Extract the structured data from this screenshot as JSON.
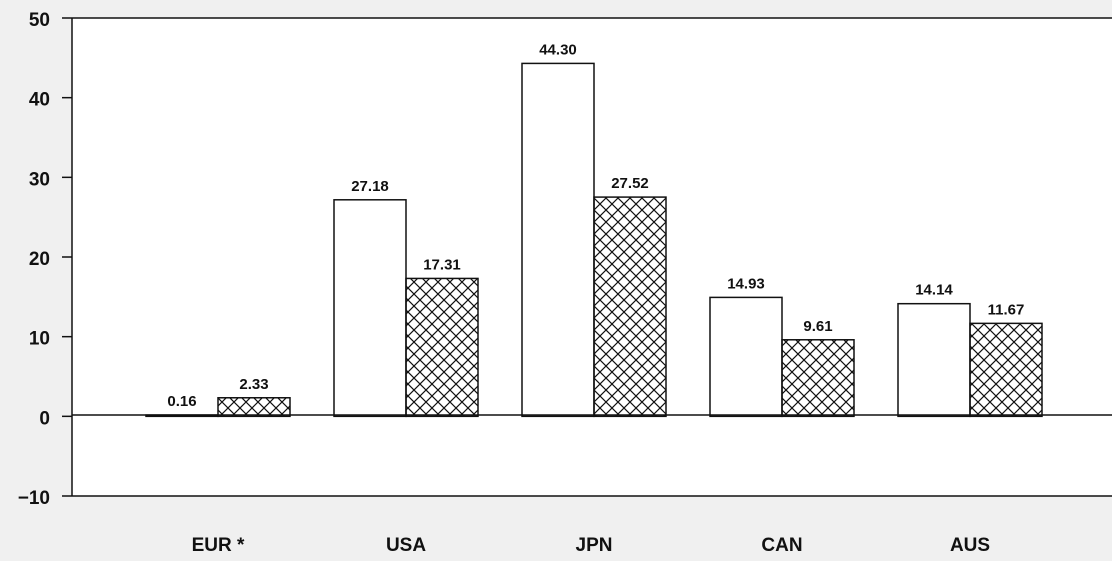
{
  "chart_data": {
    "type": "bar",
    "title": "",
    "xlabel": "",
    "ylabel": "",
    "categories": [
      "EUR *",
      "USA",
      "JPN",
      "CAN",
      "AUS"
    ],
    "series": [
      {
        "values": [
          0.16,
          27.18,
          44.3,
          14.93,
          14.14
        ],
        "pattern": "plain"
      },
      {
        "values": [
          2.33,
          17.31,
          27.52,
          9.61,
          11.67
        ],
        "pattern": "crosshatch"
      }
    ],
    "data_labels": [
      [
        "0.16",
        "27.18",
        "44.30",
        "14.93",
        "14.14"
      ],
      [
        "2.33",
        "17.31",
        "27.52",
        "9.61",
        "11.67"
      ]
    ],
    "ylim": [
      -10,
      50
    ],
    "yticks": [
      50,
      40,
      30,
      20,
      10,
      0,
      -10
    ],
    "ytick_labels": [
      "50",
      "40",
      "30",
      "20",
      "10",
      "0",
      "−10"
    ],
    "grid": false,
    "legend": "none",
    "colors": {
      "background": "#f0f0f0",
      "plot": "#ffffff",
      "bar_fill": "#ffffff",
      "ink": "#111111"
    }
  }
}
